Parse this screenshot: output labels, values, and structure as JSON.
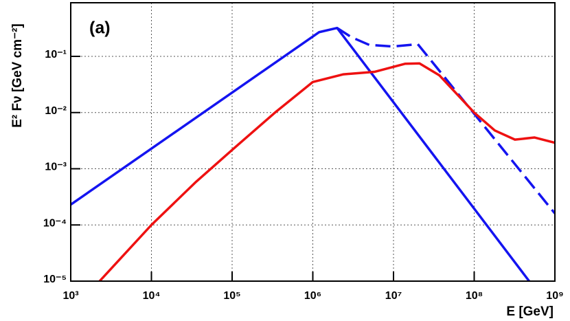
{
  "chart_data": {
    "type": "line",
    "annotation": "(a)",
    "x_label": "E  [GeV]",
    "y_label": "E² Fν  [GeV cm⁻²]",
    "log_x": true,
    "log_y": true,
    "grid": true,
    "xlim": [
      1000,
      1000000000
    ],
    "ylim": [
      1e-05,
      0.9
    ],
    "xticks": [
      {
        "value": 1000,
        "label": "10³"
      },
      {
        "value": 10000,
        "label": "10⁴"
      },
      {
        "value": 100000,
        "label": "10⁵"
      },
      {
        "value": 1000000,
        "label": "10⁶"
      },
      {
        "value": 10000000,
        "label": "10⁷"
      },
      {
        "value": 100000000,
        "label": "10⁸"
      },
      {
        "value": 1000000000,
        "label": "10⁹"
      }
    ],
    "yticks": [
      {
        "value": 1e-05,
        "label": "10⁻⁵"
      },
      {
        "value": 0.0001,
        "label": "10⁻⁴"
      },
      {
        "value": 0.001,
        "label": "10⁻³"
      },
      {
        "value": 0.01,
        "label": "10⁻²"
      },
      {
        "value": 0.1,
        "label": "10⁻¹"
      }
    ],
    "series": [
      {
        "color": "#1414f0",
        "style": "solid",
        "x": [
          1000,
          1200000,
          2000000,
          480000000
        ],
        "values": [
          0.00023,
          0.27,
          0.32,
          1e-05
        ]
      },
      {
        "color": "#1414f0",
        "style": "dashed",
        "x": [
          2000000,
          3000000,
          5000000,
          10000000,
          20000000,
          1000000000
        ],
        "values": [
          0.32,
          0.22,
          0.16,
          0.15,
          0.165,
          0.00016
        ]
      },
      {
        "color": "#ee1111",
        "style": "solid",
        "x": [
          2280,
          10000,
          35000,
          105000,
          340000,
          1000000,
          2400000,
          5800000,
          14000000,
          21000000,
          37000000,
          100000000,
          180000000,
          320000000,
          560000000,
          1000000000
        ],
        "values": [
          1e-05,
          0.0001,
          0.00057,
          0.0023,
          0.01,
          0.035,
          0.048,
          0.053,
          0.074,
          0.075,
          0.046,
          0.01,
          0.0048,
          0.0033,
          0.0036,
          0.0029
        ]
      }
    ]
  }
}
